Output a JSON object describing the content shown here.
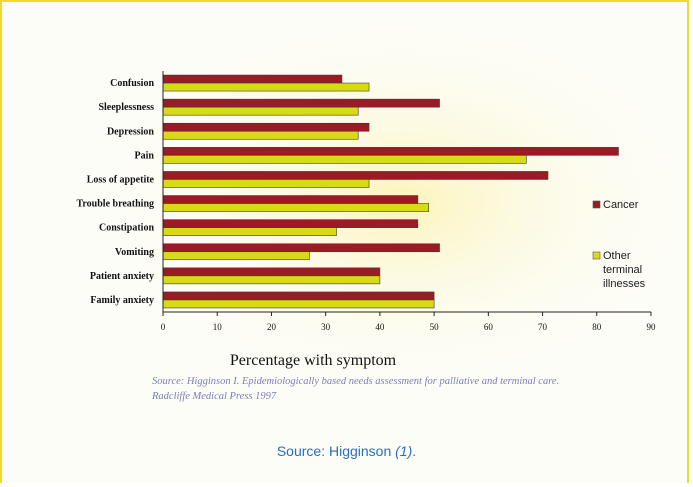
{
  "chart_data": {
    "type": "bar",
    "orientation": "horizontal",
    "categories": [
      "Confusion",
      "Sleeplessness",
      "Depression",
      "Pain",
      "Loss of appetite",
      "Trouble breathing",
      "Constipation",
      "Vomiting",
      "Patient anxiety",
      "Family anxiety"
    ],
    "series": [
      {
        "name": "Cancer",
        "color": "#9b1b25",
        "values": [
          33,
          51,
          38,
          84,
          71,
          47,
          47,
          51,
          40,
          50
        ]
      },
      {
        "name": "Other terminal illnesses",
        "color": "#d7da16",
        "values": [
          38,
          36,
          36,
          67,
          38,
          49,
          32,
          27,
          40,
          50
        ]
      }
    ],
    "xlabel": "Percentage with symptom",
    "xlim": [
      0,
      90
    ],
    "xticks": [
      0,
      10,
      20,
      30,
      40,
      50,
      60,
      70,
      80,
      90
    ],
    "legend_position": "right",
    "grid": false
  },
  "legend": {
    "cancer": "Cancer",
    "other_lines": [
      "Other",
      "terminal",
      "illnesses"
    ]
  },
  "source_note": {
    "line1": "Source: Higginson I. Epidemiologically based needs assessment for palliative and terminal care.",
    "line2": "Radcliffe Medical Press 1997"
  },
  "caption": {
    "text": "Source: Higginson ",
    "ref": "(1)",
    "end": "."
  }
}
